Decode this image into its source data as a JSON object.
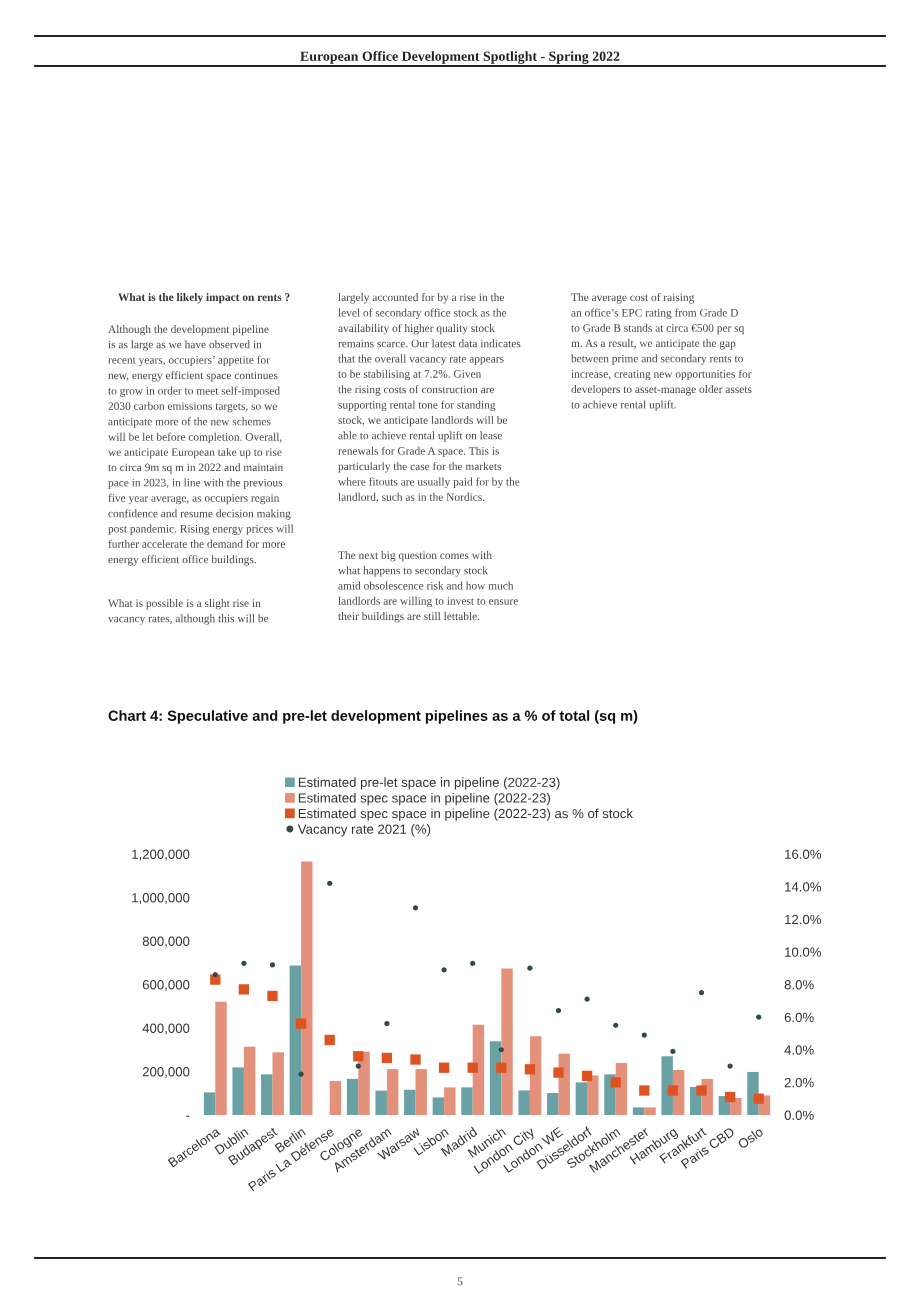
{
  "chart_data": {
    "type": "bar",
    "title": "Chart 4: Speculative and pre-let development pipelines as a % of total (sq m)",
    "annotations": [
      "European Office Development Spotlight - Spring 2022",
      "What is the likely impact on rents ?",
      "Although the development pipeline\nis as large as we have observed in\nrecent years, occupiers’ appetite for\nnew, energy efficient space continues\nto grow in order to meet self-imposed\n2030 carbon emissions targets, so we\nanticipate more of the new schemes\nwill be let before completion. Overall,\nwe anticipate European take up to rise\nto circa 9m sq m in 2022 and maintain\npace in 2023, in line with the previous\nfive year average, as occupiers regain\nconfidence and resume decision making\npost pandemic. Rising energy prices will\nfurther accelerate the demand for more\nenergy efficient office buildings.",
      "What is possible is a slight rise in\nvacancy rates, although this will be",
      "largely accounted for by a rise in the\nlevel of secondary office stock as the\navailability of higher quality stock\nremains scarce. Our latest data indicates\nthat the overall vacancy rate appears\nto be stabilising at 7.2%. Given\nthe rising costs of construction are\nsupporting rental tone for standing\nstock, we anticipate landlords will be\nable to achieve rental uplift on lease\nrenewals for Grade A space. This is\nparticularly the case for the markets\nwhere fitouts are usually paid for by the\nlandlord, such as in the Nordics.",
      "The next big question comes with\nwhat happens to secondary stock\namid obsolescence risk and how much\nlandlords are willing to invest to ensure\ntheir buildings are still lettable.",
      "The average cost of raising\nan office’s EPC rating from Grade D\nto Grade B stands at circa €500 per sq\nm. As a result, we anticipate the gap\nbetween prime and secondary rents to\nincrease, creating new opportunities for\ndevelopers to asset-manage older assets\nto achieve rental uplift.",
      "5"
    ],
    "categories": [
      "Barcelona",
      "Dublin",
      "Budapest",
      "Berlin",
      "Paris La Défense",
      "Cologne",
      "Amsterdam",
      "Warsaw",
      "Lisbon",
      "Madrid",
      "Munich",
      "London City",
      "London WE",
      "Düsseldorf",
      "Stockholm",
      "Manchester",
      "Hamburg",
      "Frankfurt",
      "Paris CBD",
      "Oslo"
    ],
    "series": [
      {
        "name": "Estimated pre-let space in pipeline (2022-23)",
        "color": "#69a1a5",
        "values": [
          104000,
          219000,
          187000,
          687000,
          null,
          166000,
          112000,
          116000,
          81000,
          127000,
          339000,
          113000,
          101000,
          150000,
          187000,
          35000,
          270000,
          129000,
          87000,
          198000
        ]
      },
      {
        "name": "Estimated spec space in pipeline (2022-23)",
        "color": "#e3917a",
        "values": [
          521000,
          314000,
          288000,
          1165000,
          156000,
          291000,
          211000,
          211000,
          127000,
          415000,
          673000,
          362000,
          282000,
          182000,
          239000,
          35000,
          207000,
          166000,
          78000,
          90000
        ]
      },
      {
        "name": "Estimated spec space in pipeline (2022-23) as % of stock",
        "type": "scatter",
        "axis": "y2",
        "marker": "square",
        "color": "#de5320",
        "values": [
          8.3,
          7.7,
          7.3,
          5.6,
          4.6,
          3.6,
          3.5,
          3.4,
          2.9,
          2.9,
          2.9,
          2.8,
          2.6,
          2.4,
          2.0,
          1.5,
          1.5,
          1.5,
          1.1,
          1.0
        ]
      },
      {
        "name": "Vacancy rate 2021 (%)",
        "type": "scatter",
        "axis": "y2",
        "marker": "circle",
        "color": "#2f4b47",
        "values": [
          8.6,
          9.3,
          9.2,
          2.5,
          14.2,
          3.0,
          5.6,
          12.7,
          8.9,
          9.3,
          4.0,
          9.0,
          6.4,
          7.1,
          5.5,
          4.9,
          3.9,
          7.5,
          3.0,
          6.0
        ]
      }
    ],
    "ylim": [
      0,
      1200000
    ],
    "yticks": [
      {
        "value": 0,
        "label": "-"
      },
      {
        "value": 200000,
        "label": "200,000"
      },
      {
        "value": 400000,
        "label": "400,000"
      },
      {
        "value": 600000,
        "label": "600,000"
      },
      {
        "value": 800000,
        "label": "800,000"
      },
      {
        "value": 1000000,
        "label": "1,000,000"
      },
      {
        "value": 1200000,
        "label": "1,200,000"
      }
    ],
    "y2lim": [
      0,
      16
    ],
    "y2ticks": [
      {
        "value": 0,
        "label": "0.0%"
      },
      {
        "value": 2,
        "label": "2.0%"
      },
      {
        "value": 4,
        "label": "4.0%"
      },
      {
        "value": 6,
        "label": "6.0%"
      },
      {
        "value": 8,
        "label": "8.0%"
      },
      {
        "value": 10,
        "label": "10.0%"
      },
      {
        "value": 12,
        "label": "12.0%"
      },
      {
        "value": 14,
        "label": "14.0%"
      },
      {
        "value": 16,
        "label": "16.0%"
      }
    ],
    "legend": "top",
    "grid": false
  }
}
